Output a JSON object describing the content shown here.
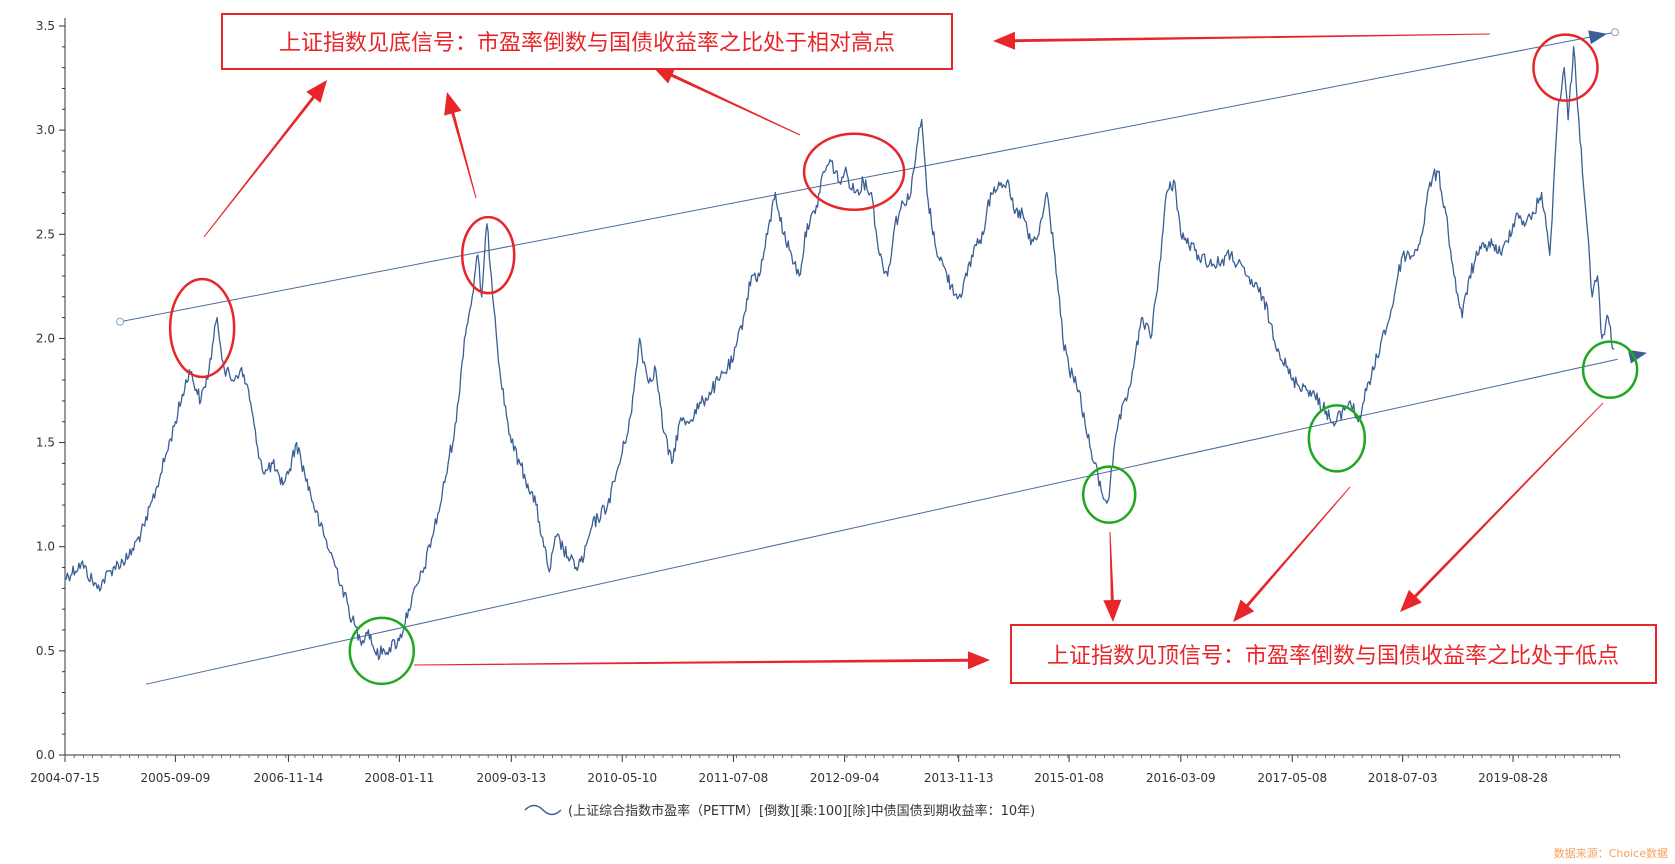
{
  "chart_data": {
    "type": "line",
    "title": "",
    "xlabel": "",
    "ylabel": "",
    "ylim": [
      0,
      3.5
    ],
    "yticks": [
      "0.0",
      "0.5",
      "1.0",
      "1.5",
      "2.0",
      "2.5",
      "3.0",
      "3.5"
    ],
    "xticks": [
      "2004-07-15",
      "2005-09-09",
      "2006-11-14",
      "2008-01-11",
      "2009-03-13",
      "2010-05-10",
      "2011-07-08",
      "2012-09-04",
      "2013-11-13",
      "2015-01-08",
      "2016-03-09",
      "2017-05-08",
      "2018-07-03",
      "2019-08-28"
    ],
    "grid": false,
    "legend_position": "bottom",
    "series": [
      {
        "name": "(上证综合指数市盈率（PETTM）[倒数][乘:100][除]中债国债到期收益率：10年)",
        "color": "#3b5f95",
        "points": [
          [
            "2004-07-15",
            0.85
          ],
          [
            "2004-09-15",
            0.92
          ],
          [
            "2004-11-15",
            0.8
          ],
          [
            "2005-01-15",
            0.9
          ],
          [
            "2005-03-15",
            0.95
          ],
          [
            "2005-05-15",
            1.1
          ],
          [
            "2005-07-15",
            1.35
          ],
          [
            "2005-09-09",
            1.6
          ],
          [
            "2005-11-01",
            1.85
          ],
          [
            "2005-12-15",
            1.7
          ],
          [
            "2006-01-15",
            1.85
          ],
          [
            "2006-02-15",
            2.1
          ],
          [
            "2006-03-15",
            1.85
          ],
          [
            "2006-04-15",
            1.8
          ],
          [
            "2006-05-15",
            1.85
          ],
          [
            "2006-06-15",
            1.75
          ],
          [
            "2006-07-15",
            1.5
          ],
          [
            "2006-08-15",
            1.35
          ],
          [
            "2006-09-15",
            1.4
          ],
          [
            "2006-10-15",
            1.3
          ],
          [
            "2006-11-14",
            1.35
          ],
          [
            "2006-12-15",
            1.5
          ],
          [
            "2007-01-15",
            1.35
          ],
          [
            "2007-03-15",
            1.1
          ],
          [
            "2007-05-15",
            0.9
          ],
          [
            "2007-07-15",
            0.65
          ],
          [
            "2007-08-15",
            0.55
          ],
          [
            "2007-09-15",
            0.6
          ],
          [
            "2007-10-15",
            0.48
          ],
          [
            "2007-11-15",
            0.5
          ],
          [
            "2008-01-11",
            0.55
          ],
          [
            "2008-02-15",
            0.7
          ],
          [
            "2008-04-15",
            0.9
          ],
          [
            "2008-06-15",
            1.2
          ],
          [
            "2008-07-15",
            1.4
          ],
          [
            "2008-08-15",
            1.6
          ],
          [
            "2008-09-15",
            2.0
          ],
          [
            "2008-10-15",
            2.2
          ],
          [
            "2008-11-05",
            2.4
          ],
          [
            "2008-11-20",
            2.2
          ],
          [
            "2008-12-10",
            2.55
          ],
          [
            "2009-01-10",
            2.1
          ],
          [
            "2009-02-01",
            1.8
          ],
          [
            "2009-03-13",
            1.5
          ],
          [
            "2009-04-15",
            1.4
          ],
          [
            "2009-05-15",
            1.3
          ],
          [
            "2009-06-15",
            1.2
          ],
          [
            "2009-07-15",
            1.0
          ],
          [
            "2009-08-05",
            0.88
          ],
          [
            "2009-09-01",
            1.05
          ],
          [
            "2009-10-15",
            0.95
          ],
          [
            "2009-11-15",
            0.9
          ],
          [
            "2009-12-15",
            0.95
          ],
          [
            "2010-01-15",
            1.1
          ],
          [
            "2010-03-15",
            1.2
          ],
          [
            "2010-05-10",
            1.45
          ],
          [
            "2010-06-15",
            1.65
          ],
          [
            "2010-07-15",
            2.0
          ],
          [
            "2010-08-15",
            1.8
          ],
          [
            "2010-09-15",
            1.85
          ],
          [
            "2010-10-15",
            1.55
          ],
          [
            "2010-11-15",
            1.4
          ],
          [
            "2010-12-15",
            1.6
          ],
          [
            "2011-01-15",
            1.6
          ],
          [
            "2011-03-15",
            1.7
          ],
          [
            "2011-05-15",
            1.8
          ],
          [
            "2011-07-08",
            1.9
          ],
          [
            "2011-08-15",
            2.1
          ],
          [
            "2011-09-15",
            2.3
          ],
          [
            "2011-10-15",
            2.3
          ],
          [
            "2011-11-15",
            2.5
          ],
          [
            "2011-12-15",
            2.7
          ],
          [
            "2012-01-15",
            2.5
          ],
          [
            "2012-02-15",
            2.4
          ],
          [
            "2012-03-15",
            2.3
          ],
          [
            "2012-04-15",
            2.55
          ],
          [
            "2012-05-15",
            2.6
          ],
          [
            "2012-06-15",
            2.8
          ],
          [
            "2012-07-15",
            2.85
          ],
          [
            "2012-08-15",
            2.75
          ],
          [
            "2012-09-04",
            2.8
          ],
          [
            "2012-10-15",
            2.7
          ],
          [
            "2012-11-15",
            2.75
          ],
          [
            "2012-12-15",
            2.7
          ],
          [
            "2013-01-15",
            2.4
          ],
          [
            "2013-02-15",
            2.3
          ],
          [
            "2013-03-15",
            2.55
          ],
          [
            "2013-04-15",
            2.65
          ],
          [
            "2013-05-15",
            2.7
          ],
          [
            "2013-06-10",
            2.95
          ],
          [
            "2013-06-25",
            3.05
          ],
          [
            "2013-07-15",
            2.7
          ],
          [
            "2013-08-15",
            2.45
          ],
          [
            "2013-09-15",
            2.35
          ],
          [
            "2013-10-15",
            2.25
          ],
          [
            "2013-11-13",
            2.2
          ],
          [
            "2013-12-15",
            2.3
          ],
          [
            "2014-01-15",
            2.45
          ],
          [
            "2014-02-15",
            2.5
          ],
          [
            "2014-03-15",
            2.7
          ],
          [
            "2014-04-15",
            2.75
          ],
          [
            "2014-05-15",
            2.75
          ],
          [
            "2014-06-15",
            2.6
          ],
          [
            "2014-07-15",
            2.6
          ],
          [
            "2014-08-15",
            2.45
          ],
          [
            "2014-09-15",
            2.5
          ],
          [
            "2014-10-15",
            2.7
          ],
          [
            "2014-11-15",
            2.4
          ],
          [
            "2014-12-15",
            2.0
          ],
          [
            "2015-01-08",
            1.85
          ],
          [
            "2015-02-15",
            1.75
          ],
          [
            "2015-03-15",
            1.55
          ],
          [
            "2015-04-15",
            1.4
          ],
          [
            "2015-05-15",
            1.25
          ],
          [
            "2015-06-05",
            1.22
          ],
          [
            "2015-07-15",
            1.6
          ],
          [
            "2015-08-15",
            1.7
          ],
          [
            "2015-09-15",
            1.9
          ],
          [
            "2015-10-15",
            2.1
          ],
          [
            "2015-11-15",
            2.0
          ],
          [
            "2015-12-15",
            2.3
          ],
          [
            "2016-01-15",
            2.7
          ],
          [
            "2016-02-15",
            2.75
          ],
          [
            "2016-03-09",
            2.5
          ],
          [
            "2016-05-15",
            2.4
          ],
          [
            "2016-07-15",
            2.35
          ],
          [
            "2016-09-15",
            2.4
          ],
          [
            "2016-11-15",
            2.3
          ],
          [
            "2017-01-15",
            2.2
          ],
          [
            "2017-03-15",
            1.95
          ],
          [
            "2017-05-08",
            1.8
          ],
          [
            "2017-07-15",
            1.75
          ],
          [
            "2017-09-15",
            1.65
          ],
          [
            "2017-10-15",
            1.58
          ],
          [
            "2017-11-15",
            1.65
          ],
          [
            "2017-12-15",
            1.7
          ],
          [
            "2018-01-15",
            1.6
          ],
          [
            "2018-02-15",
            1.75
          ],
          [
            "2018-03-15",
            1.85
          ],
          [
            "2018-04-15",
            2.0
          ],
          [
            "2018-05-15",
            2.1
          ],
          [
            "2018-06-15",
            2.3
          ],
          [
            "2018-07-03",
            2.4
          ],
          [
            "2018-08-15",
            2.4
          ],
          [
            "2018-09-15",
            2.5
          ],
          [
            "2018-10-15",
            2.75
          ],
          [
            "2018-11-15",
            2.8
          ],
          [
            "2018-12-15",
            2.6
          ],
          [
            "2019-01-15",
            2.3
          ],
          [
            "2019-02-15",
            2.1
          ],
          [
            "2019-03-15",
            2.3
          ],
          [
            "2019-04-15",
            2.4
          ],
          [
            "2019-05-15",
            2.45
          ],
          [
            "2019-06-15",
            2.45
          ],
          [
            "2019-07-15",
            2.4
          ],
          [
            "2019-08-28",
            2.55
          ],
          [
            "2019-09-15",
            2.6
          ],
          [
            "2019-10-15",
            2.55
          ],
          [
            "2019-11-15",
            2.6
          ],
          [
            "2019-12-15",
            2.7
          ],
          [
            "2020-01-15",
            2.4
          ],
          [
            "2020-02-15",
            3.1
          ],
          [
            "2020-03-10",
            3.3
          ],
          [
            "2020-03-25",
            3.05
          ],
          [
            "2020-04-15",
            3.4
          ],
          [
            "2020-05-05",
            3.05
          ],
          [
            "2020-06-01",
            2.6
          ],
          [
            "2020-06-25",
            2.2
          ],
          [
            "2020-07-15",
            2.3
          ],
          [
            "2020-08-01",
            2.0
          ],
          [
            "2020-08-25",
            2.1
          ],
          [
            "2020-09-15",
            1.95
          ]
        ]
      }
    ],
    "channel_lines": [
      {
        "name": "upper",
        "from": [
          "2005-02-10",
          2.08
        ],
        "to": [
          "2020-09-20",
          3.47
        ]
      },
      {
        "name": "lower",
        "from": [
          "2005-05-20",
          0.34
        ],
        "to": [
          "2020-09-30",
          1.9
        ]
      }
    ],
    "highlight_circles": [
      {
        "color": "#e8262a",
        "center": [
          "2005-12-20",
          2.05
        ]
      },
      {
        "color": "#e8262a",
        "center": [
          "2008-12-15",
          2.4
        ]
      },
      {
        "color": "#e8262a",
        "center": [
          "2012-10-10",
          2.8
        ]
      },
      {
        "color": "#e8262a",
        "center": [
          "2020-03-15",
          3.3
        ]
      },
      {
        "color": "#1fa81f",
        "center": [
          "2007-11-05",
          0.5
        ]
      },
      {
        "color": "#1fa81f",
        "center": [
          "2015-06-10",
          1.25
        ]
      },
      {
        "color": "#1fa81f",
        "center": [
          "2017-10-25",
          1.52
        ]
      },
      {
        "color": "#1fa81f",
        "center": [
          "2020-09-01",
          1.85
        ]
      }
    ],
    "annotations": [
      {
        "text": "上证指数见底信号：市盈率倒数与国债收益率之比处于相对高点",
        "color": "#e8262a",
        "box": true
      },
      {
        "text": "上证指数见顶信号：市盈率倒数与国债收益率之比处于低点",
        "color": "#e8262a",
        "box": true
      }
    ],
    "source_note": "数据来源：Choice数据"
  }
}
